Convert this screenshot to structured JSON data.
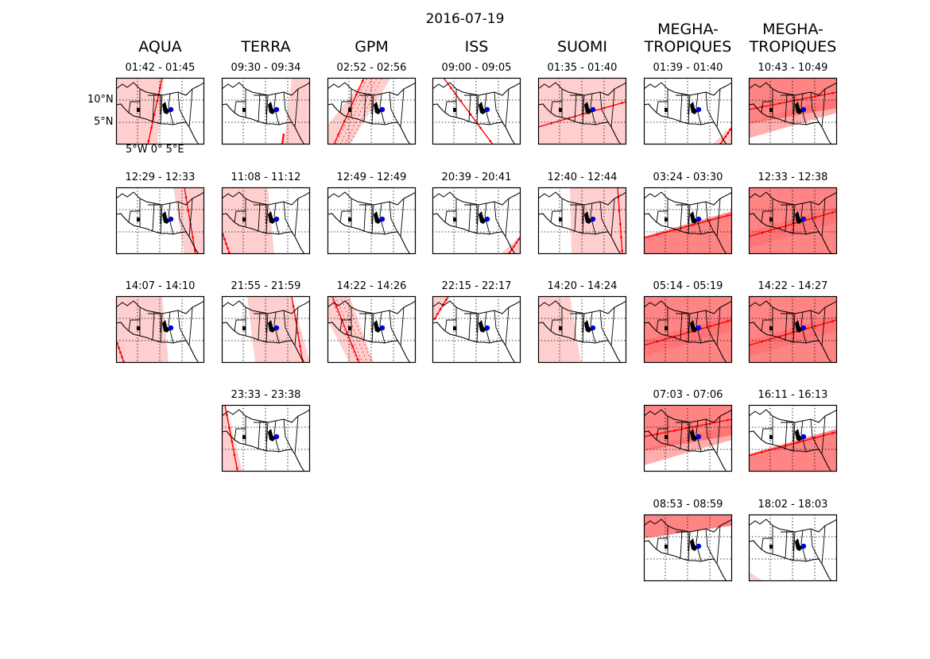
{
  "title": "2016-07-19",
  "colors": {
    "swath_light": "#ffcfcf",
    "swath_dark": "#ff8484",
    "track": "#ff0000",
    "site": "#0000dd"
  },
  "axes_labels": {
    "lat_10": "10°N",
    "lat_5": "5°N",
    "lon": "5°W  0°  5°E"
  },
  "columns": [
    {
      "name": "AQUA",
      "passes": [
        {
          "time": "01:42 - 01:45",
          "swath": "track",
          "shade": "light"
        },
        {
          "time": "12:29 - 12:33",
          "swath": "right-edge",
          "shade": "light"
        },
        {
          "time": "14:07 - 14:10",
          "swath": "left-half",
          "shade": "light"
        }
      ]
    },
    {
      "name": "TERRA",
      "passes": [
        {
          "time": "09:30 - 09:34",
          "swath": "right-strip",
          "shade": "light"
        },
        {
          "time": "11:08 - 11:12",
          "swath": "left-half",
          "shade": "light"
        },
        {
          "time": "21:55 - 21:59",
          "swath": "center-right",
          "shade": "light"
        },
        {
          "time": "23:33 - 23:38",
          "swath": "left-strip",
          "shade": "light"
        }
      ]
    },
    {
      "name": "GPM",
      "passes": [
        {
          "time": "02:52 - 02:56",
          "swath": "diag-left",
          "shade": "light"
        },
        {
          "time": "12:49 - 12:49",
          "swath": "none",
          "shade": "light"
        },
        {
          "time": "14:22 - 14:26",
          "swath": "diag-band",
          "shade": "light"
        }
      ]
    },
    {
      "name": "ISS",
      "passes": [
        {
          "time": "09:00 - 09:05",
          "swath": "track-only",
          "shade": "light"
        },
        {
          "time": "20:39 - 20:41",
          "swath": "corner-br",
          "shade": "light"
        },
        {
          "time": "22:15 - 22:17",
          "swath": "corner-tl",
          "shade": "light"
        }
      ]
    },
    {
      "name": "SUOMI",
      "passes": [
        {
          "time": "01:35 - 01:40",
          "swath": "full",
          "shade": "light"
        },
        {
          "time": "12:40 - 12:44",
          "swath": "right-wide",
          "shade": "light"
        },
        {
          "time": "14:20 - 14:24",
          "swath": "left-wide",
          "shade": "light"
        }
      ]
    },
    {
      "name": "MEGHA-\nTROPIQUES",
      "passes": [
        {
          "time": "01:39 - 01:40",
          "swath": "corner-br",
          "shade": "light"
        },
        {
          "time": "03:24 - 03:30",
          "swath": "bottom-diag",
          "shade": "dark"
        },
        {
          "time": "05:14 - 05:19",
          "swath": "full",
          "shade": "dark"
        },
        {
          "time": "07:03 - 07:06",
          "swath": "top-band",
          "shade": "dark"
        },
        {
          "time": "08:53 - 08:59",
          "swath": "top-strip",
          "shade": "dark"
        }
      ]
    },
    {
      "name": "MEGHA-\nTROPIQUES",
      "passes": [
        {
          "time": "10:43 - 10:49",
          "swath": "top-band",
          "shade": "dark"
        },
        {
          "time": "12:33 - 12:38",
          "swath": "full",
          "shade": "dark"
        },
        {
          "time": "14:22 - 14:27",
          "swath": "full",
          "shade": "dark"
        },
        {
          "time": "16:11 - 16:13",
          "swath": "bottom-diag",
          "shade": "dark"
        },
        {
          "time": "18:02 - 18:03",
          "swath": "corner-bl",
          "shade": "light"
        }
      ]
    }
  ]
}
